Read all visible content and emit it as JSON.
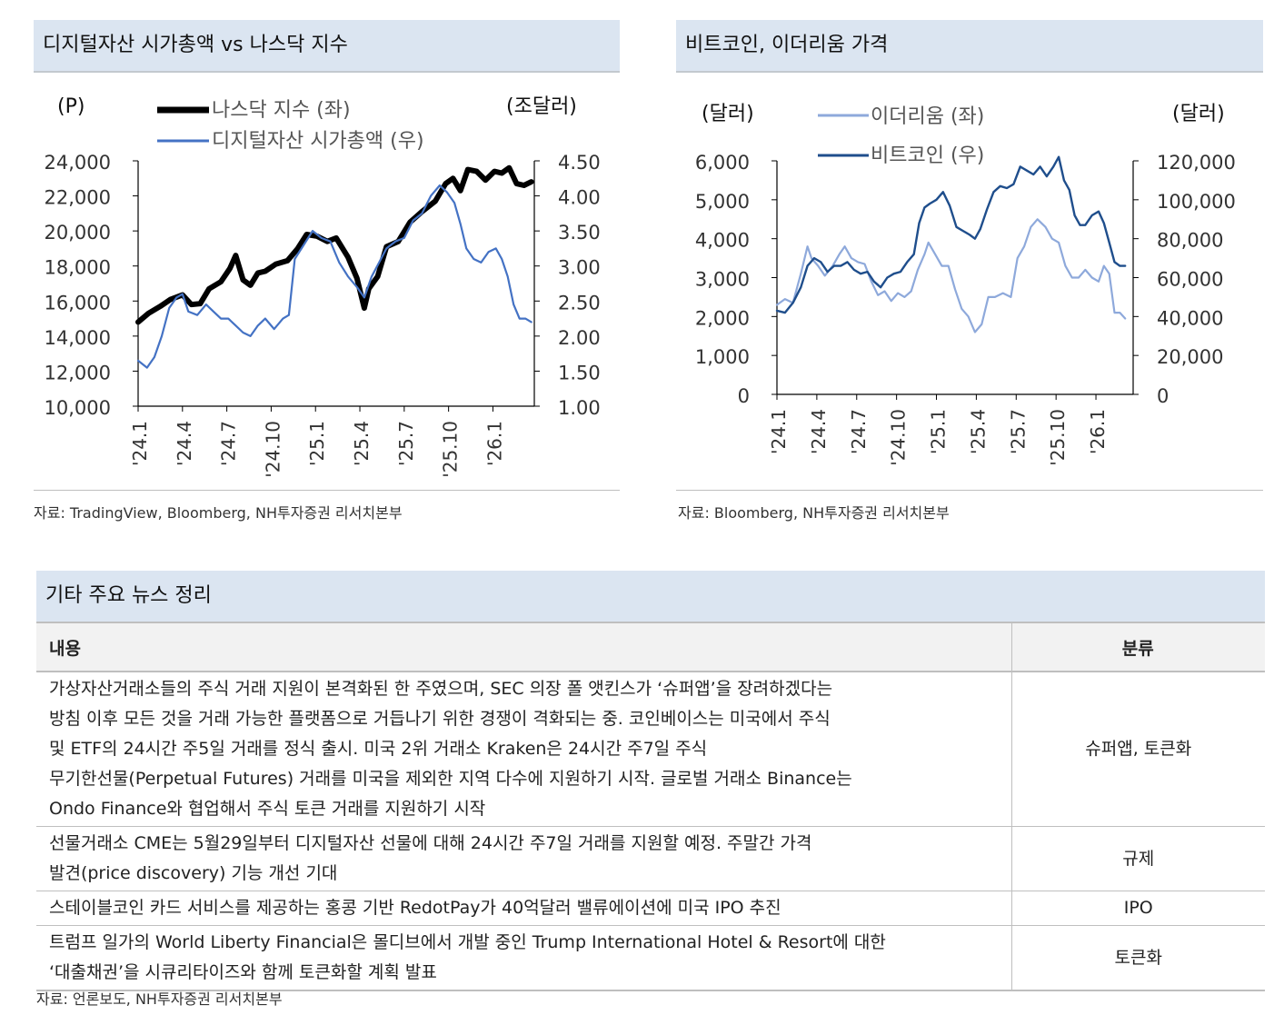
{
  "chart_data": [
    {
      "type": "line",
      "title": "디지털자산 시가총액 vs 나스닥 지수",
      "y_left_unit": "(P)",
      "y_right_unit": "(조달러)",
      "ylim_left": [
        10000,
        24000
      ],
      "ylim_right": [
        1.0,
        4.5
      ],
      "yticks_left": [
        "24,000",
        "22,000",
        "20,000",
        "18,000",
        "16,000",
        "14,000",
        "12,000",
        "10,000"
      ],
      "yticks_right": [
        "4.50",
        "4.00",
        "3.50",
        "3.00",
        "2.50",
        "2.00",
        "1.50",
        "1.00"
      ],
      "x_labels": [
        "'24.1",
        "'24.4",
        "'24.7",
        "'24.10",
        "'25.1",
        "'25.4",
        "'25.7",
        "'25.10",
        "'26.1"
      ],
      "x_months": [
        0,
        3,
        6,
        9,
        12,
        15,
        18,
        21,
        24
      ],
      "x_range_months": [
        0,
        26.8
      ],
      "series": [
        {
          "name": "나스닥 지수 (좌)",
          "axis": "left",
          "color": "#000000",
          "points": [
            [
              0,
              14800
            ],
            [
              0.7,
              15300
            ],
            [
              1.5,
              15700
            ],
            [
              2.2,
              16100
            ],
            [
              3,
              16350
            ],
            [
              3.6,
              15800
            ],
            [
              4.2,
              15850
            ],
            [
              4.8,
              16700
            ],
            [
              5.6,
              17100
            ],
            [
              6.2,
              17850
            ],
            [
              6.6,
              18600
            ],
            [
              7.1,
              17200
            ],
            [
              7.6,
              16900
            ],
            [
              8.1,
              17600
            ],
            [
              8.6,
              17700
            ],
            [
              9.3,
              18100
            ],
            [
              10.1,
              18300
            ],
            [
              10.8,
              19000
            ],
            [
              11.4,
              19800
            ],
            [
              12.1,
              19700
            ],
            [
              12.8,
              19400
            ],
            [
              13.4,
              19600
            ],
            [
              14.2,
              18500
            ],
            [
              14.8,
              17300
            ],
            [
              15.3,
              15600
            ],
            [
              15.6,
              16700
            ],
            [
              16.2,
              17400
            ],
            [
              16.8,
              19100
            ],
            [
              17.6,
              19400
            ],
            [
              18.4,
              20500
            ],
            [
              19.2,
              21100
            ],
            [
              20.1,
              21700
            ],
            [
              20.8,
              22700
            ],
            [
              21.3,
              23000
            ],
            [
              21.8,
              22300
            ],
            [
              22.3,
              23500
            ],
            [
              22.9,
              23400
            ],
            [
              23.5,
              22900
            ],
            [
              24.1,
              23400
            ],
            [
              24.6,
              23300
            ],
            [
              25.1,
              23600
            ],
            [
              25.6,
              22700
            ],
            [
              26.1,
              22600
            ],
            [
              26.6,
              22800
            ]
          ]
        },
        {
          "name": "디지털자산 시가총액 (우)",
          "axis": "right",
          "color": "#4472c4",
          "points": [
            [
              0,
              1.65
            ],
            [
              0.6,
              1.55
            ],
            [
              1.1,
              1.7
            ],
            [
              1.6,
              2.0
            ],
            [
              2.1,
              2.4
            ],
            [
              2.6,
              2.55
            ],
            [
              3.0,
              2.6
            ],
            [
              3.4,
              2.35
            ],
            [
              4.0,
              2.3
            ],
            [
              4.6,
              2.45
            ],
            [
              5.1,
              2.35
            ],
            [
              5.6,
              2.25
            ],
            [
              6.1,
              2.25
            ],
            [
              6.6,
              2.15
            ],
            [
              7.1,
              2.05
            ],
            [
              7.6,
              2.0
            ],
            [
              8.1,
              2.15
            ],
            [
              8.6,
              2.25
            ],
            [
              9.2,
              2.1
            ],
            [
              9.8,
              2.25
            ],
            [
              10.2,
              2.3
            ],
            [
              10.6,
              3.1
            ],
            [
              11.2,
              3.3
            ],
            [
              11.8,
              3.5
            ],
            [
              12.4,
              3.4
            ],
            [
              13.0,
              3.35
            ],
            [
              13.6,
              3.05
            ],
            [
              14.2,
              2.85
            ],
            [
              14.8,
              2.7
            ],
            [
              15.3,
              2.55
            ],
            [
              15.8,
              2.85
            ],
            [
              16.3,
              3.05
            ],
            [
              16.8,
              3.25
            ],
            [
              17.4,
              3.35
            ],
            [
              18.0,
              3.4
            ],
            [
              18.6,
              3.65
            ],
            [
              19.2,
              3.75
            ],
            [
              19.8,
              4.0
            ],
            [
              20.4,
              4.15
            ],
            [
              20.9,
              4.05
            ],
            [
              21.4,
              3.9
            ],
            [
              21.8,
              3.6
            ],
            [
              22.2,
              3.25
            ],
            [
              22.7,
              3.1
            ],
            [
              23.2,
              3.05
            ],
            [
              23.7,
              3.2
            ],
            [
              24.2,
              3.25
            ],
            [
              24.6,
              3.1
            ],
            [
              25.0,
              2.85
            ],
            [
              25.4,
              2.45
            ],
            [
              25.8,
              2.25
            ],
            [
              26.2,
              2.25
            ],
            [
              26.6,
              2.2
            ]
          ]
        }
      ]
    },
    {
      "type": "line",
      "title": "비트코인, 이더리움 가격",
      "y_left_unit": "(달러)",
      "y_right_unit": "(달러)",
      "ylim_left": [
        0,
        6000
      ],
      "ylim_right": [
        0,
        120000
      ],
      "yticks_left": [
        "6,000",
        "5,000",
        "4,000",
        "3,000",
        "2,000",
        "1,000",
        "0"
      ],
      "yticks_right": [
        "120,000",
        "100,000",
        "80,000",
        "60,000",
        "40,000",
        "20,000",
        "0"
      ],
      "x_labels": [
        "'24.1",
        "'24.4",
        "'24.7",
        "'24.10",
        "'25.1",
        "'25.4",
        "'25.7",
        "'25.10",
        "'26.1"
      ],
      "x_months": [
        0,
        3,
        6,
        9,
        12,
        15,
        18,
        21,
        24
      ],
      "x_range_months": [
        0,
        26.8
      ],
      "series": [
        {
          "name": "이더리움 (좌)",
          "axis": "left",
          "color": "#8ea9db",
          "points": [
            [
              0,
              2300
            ],
            [
              0.6,
              2450
            ],
            [
              1.2,
              2350
            ],
            [
              1.8,
              3100
            ],
            [
              2.3,
              3800
            ],
            [
              2.6,
              3500
            ],
            [
              3.1,
              3300
            ],
            [
              3.6,
              3050
            ],
            [
              4.2,
              3300
            ],
            [
              4.7,
              3600
            ],
            [
              5.1,
              3800
            ],
            [
              5.6,
              3500
            ],
            [
              6.1,
              3400
            ],
            [
              6.6,
              3350
            ],
            [
              7.1,
              2900
            ],
            [
              7.6,
              2550
            ],
            [
              8.1,
              2650
            ],
            [
              8.6,
              2400
            ],
            [
              9.1,
              2600
            ],
            [
              9.6,
              2500
            ],
            [
              10.1,
              2650
            ],
            [
              10.6,
              3200
            ],
            [
              11.1,
              3600
            ],
            [
              11.4,
              3900
            ],
            [
              11.9,
              3600
            ],
            [
              12.4,
              3300
            ],
            [
              12.9,
              3300
            ],
            [
              13.4,
              2700
            ],
            [
              13.9,
              2200
            ],
            [
              14.4,
              2000
            ],
            [
              14.9,
              1600
            ],
            [
              15.4,
              1800
            ],
            [
              15.9,
              2500
            ],
            [
              16.4,
              2500
            ],
            [
              17.0,
              2600
            ],
            [
              17.6,
              2500
            ],
            [
              18.1,
              3500
            ],
            [
              18.6,
              3800
            ],
            [
              19.1,
              4300
            ],
            [
              19.6,
              4500
            ],
            [
              20.2,
              4300
            ],
            [
              20.7,
              4000
            ],
            [
              21.2,
              3900
            ],
            [
              21.7,
              3300
            ],
            [
              22.2,
              3000
            ],
            [
              22.7,
              3000
            ],
            [
              23.2,
              3200
            ],
            [
              23.7,
              3000
            ],
            [
              24.2,
              2900
            ],
            [
              24.6,
              3300
            ],
            [
              25.0,
              3100
            ],
            [
              25.4,
              2100
            ],
            [
              25.8,
              2100
            ],
            [
              26.2,
              1950
            ]
          ]
        },
        {
          "name": "비트코인 (우)",
          "axis": "right",
          "color": "#1f4e8c",
          "points": [
            [
              0,
              43000
            ],
            [
              0.6,
              42000
            ],
            [
              1.2,
              47000
            ],
            [
              1.8,
              55000
            ],
            [
              2.3,
              66000
            ],
            [
              2.8,
              70000
            ],
            [
              3.3,
              68000
            ],
            [
              3.8,
              63000
            ],
            [
              4.3,
              66000
            ],
            [
              4.8,
              66000
            ],
            [
              5.3,
              68000
            ],
            [
              5.8,
              64000
            ],
            [
              6.3,
              62000
            ],
            [
              6.8,
              63000
            ],
            [
              7.3,
              58000
            ],
            [
              7.8,
              55000
            ],
            [
              8.3,
              60000
            ],
            [
              8.8,
              62000
            ],
            [
              9.3,
              63000
            ],
            [
              9.8,
              68000
            ],
            [
              10.3,
              72000
            ],
            [
              10.7,
              88000
            ],
            [
              11.1,
              96000
            ],
            [
              11.5,
              98000
            ],
            [
              12.0,
              100000
            ],
            [
              12.5,
              104000
            ],
            [
              13.0,
              97000
            ],
            [
              13.5,
              86000
            ],
            [
              14.0,
              84000
            ],
            [
              14.5,
              82000
            ],
            [
              14.9,
              80000
            ],
            [
              15.3,
              85000
            ],
            [
              15.8,
              95000
            ],
            [
              16.3,
              104000
            ],
            [
              16.8,
              107000
            ],
            [
              17.3,
              106000
            ],
            [
              17.8,
              108000
            ],
            [
              18.3,
              117000
            ],
            [
              18.8,
              115000
            ],
            [
              19.3,
              113000
            ],
            [
              19.8,
              117000
            ],
            [
              20.3,
              112000
            ],
            [
              20.8,
              117000
            ],
            [
              21.2,
              122000
            ],
            [
              21.6,
              110000
            ],
            [
              22.0,
              105000
            ],
            [
              22.4,
              92000
            ],
            [
              22.8,
              87000
            ],
            [
              23.2,
              87000
            ],
            [
              23.7,
              92000
            ],
            [
              24.2,
              94000
            ],
            [
              24.6,
              88000
            ],
            [
              25.0,
              78000
            ],
            [
              25.4,
              68000
            ],
            [
              25.8,
              66000
            ],
            [
              26.2,
              66000
            ]
          ]
        }
      ]
    }
  ],
  "chart1": {
    "title": "디지털자산 시가총액 vs 나스닥 지수",
    "unit_left": "(P)",
    "unit_right": "(조달러)",
    "legend_a": "나스닥 지수 (좌)",
    "legend_b": "디지털자산 시가총액 (우)",
    "source": "자료: TradingView, Bloomberg, NH투자증권 리서치본부"
  },
  "chart2": {
    "title": "비트코인, 이더리움 가격",
    "unit_left": "(달러)",
    "unit_right": "(달러)",
    "legend_a": "이더리움 (좌)",
    "legend_b": "비트코인 (우)",
    "source": "자료: Bloomberg, NH투자증권 리서치본부"
  },
  "news": {
    "title": "기타 주요 뉴스 정리",
    "col_content": "내용",
    "col_category": "분류",
    "rows": [
      {
        "lines": [
          "가상자산거래소들의 주식 거래 지원이 본격화된 한 주였으며, SEC 의장 폴 앳킨스가 ‘슈퍼앱’을 장려하겠다는",
          "방침 이후 모든 것을 거래 가능한 플랫폼으로 거듭나기 위한 경쟁이 격화되는 중. 코인베이스는 미국에서 주식",
          "및 ETF의 24시간 주5일 거래를 정식 출시. 미국 2위 거래소 Kraken은 24시간 주7일 주식",
          "무기한선물(Perpetual Futures) 거래를 미국을 제외한 지역 다수에 지원하기 시작. 글로벌 거래소 Binance는",
          "Ondo Finance와 협업해서 주식 토큰 거래를 지원하기 시작"
        ],
        "category": "슈퍼앱, 토큰화"
      },
      {
        "lines": [
          "선물거래소 CME는 5월29일부터 디지털자산 선물에 대해 24시간 주7일 거래를 지원할 예정. 주말간 가격",
          "발견(price discovery) 기능 개선 기대"
        ],
        "category": "규제"
      },
      {
        "lines": [
          "스테이블코인 카드 서비스를 제공하는 홍콩 기반 RedotPay가 40억달러 밸류에이션에 미국 IPO 추진"
        ],
        "category": "IPO"
      },
      {
        "lines": [
          "트럼프 일가의 World Liberty Financial은 몰디브에서 개발 중인 Trump International Hotel & Resort에 대한",
          "‘대출채권’을 시큐리타이즈와 함께 토큰화할 계획 발표"
        ],
        "category": "토큰화"
      }
    ],
    "source": "자료: 언론보도, NH투자증권 리서치본부"
  }
}
